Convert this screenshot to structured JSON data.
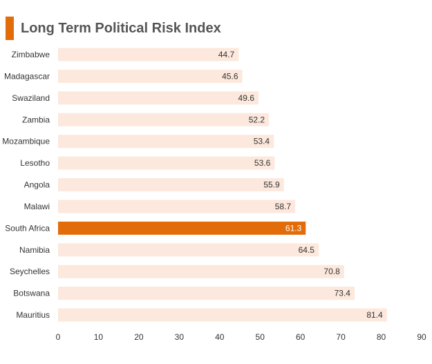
{
  "chart_data": {
    "type": "bar",
    "orientation": "horizontal",
    "title": "Long Term Political Risk Index",
    "categories": [
      "Zimbabwe",
      "Madagascar",
      "Swaziland",
      "Zambia",
      "Mozambique",
      "Lesotho",
      "Angola",
      "Malawi",
      "South Africa",
      "Namibia",
      "Seychelles",
      "Botswana",
      "Mauritius"
    ],
    "values": [
      44.7,
      45.6,
      49.6,
      52.2,
      53.4,
      53.6,
      55.9,
      58.7,
      61.3,
      64.5,
      70.8,
      73.4,
      81.4
    ],
    "value_labels": [
      "44.7",
      "45.6",
      "49.6",
      "52.2",
      "53.4",
      "53.6",
      "55.9",
      "58.7",
      "61.3",
      "64.5",
      "70.8",
      "73.4",
      "81.4"
    ],
    "highlight": "South Africa",
    "xlim": [
      0,
      90
    ],
    "ticks": [
      0,
      10,
      20,
      30,
      40,
      50,
      60,
      70,
      80,
      90
    ],
    "tick_labels": [
      "0",
      "10",
      "20",
      "30",
      "40",
      "50",
      "60",
      "70",
      "80",
      "90"
    ],
    "grid": false,
    "legend": "none",
    "colors": {
      "bar": "#fce8dc",
      "highlight": "#e36c0a",
      "accent": "#e36c0a",
      "label": "#333333",
      "highlight_label": "#ffffff"
    }
  }
}
